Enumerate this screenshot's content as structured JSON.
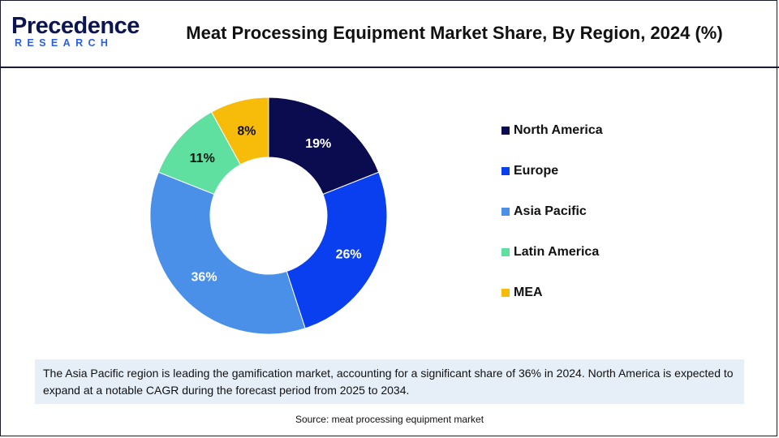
{
  "logo": {
    "top_main": "Precedence",
    "bottom": "RESEARCH"
  },
  "title": "Meat Processing Equipment Market Share, By Region, 2024 (%)",
  "chart_data": {
    "type": "pie",
    "donut": true,
    "title": "Meat Processing Equipment Market Share, By Region, 2024 (%)",
    "categories": [
      "North America",
      "Europe",
      "Asia Pacific",
      "Latin America",
      "MEA"
    ],
    "values": [
      19,
      26,
      36,
      11,
      8
    ],
    "labels": [
      "19%",
      "26%",
      "36%",
      "11%",
      "8%"
    ],
    "colors": [
      "#0b0b4f",
      "#0a3ff0",
      "#4a90e8",
      "#5fe0a0",
      "#f7bb0a"
    ],
    "label_colors": [
      "#ffffff",
      "#ffffff",
      "#ffffff",
      "#111111",
      "#111111"
    ],
    "legend_position": "right"
  },
  "note": "The Asia Pacific region is leading the gamification market, accounting for a significant share of 36% in 2024. North America is expected to expand at a notable CAGR during the forecast period from 2025 to 2034.",
  "source": "Source: meat processing equipment market"
}
